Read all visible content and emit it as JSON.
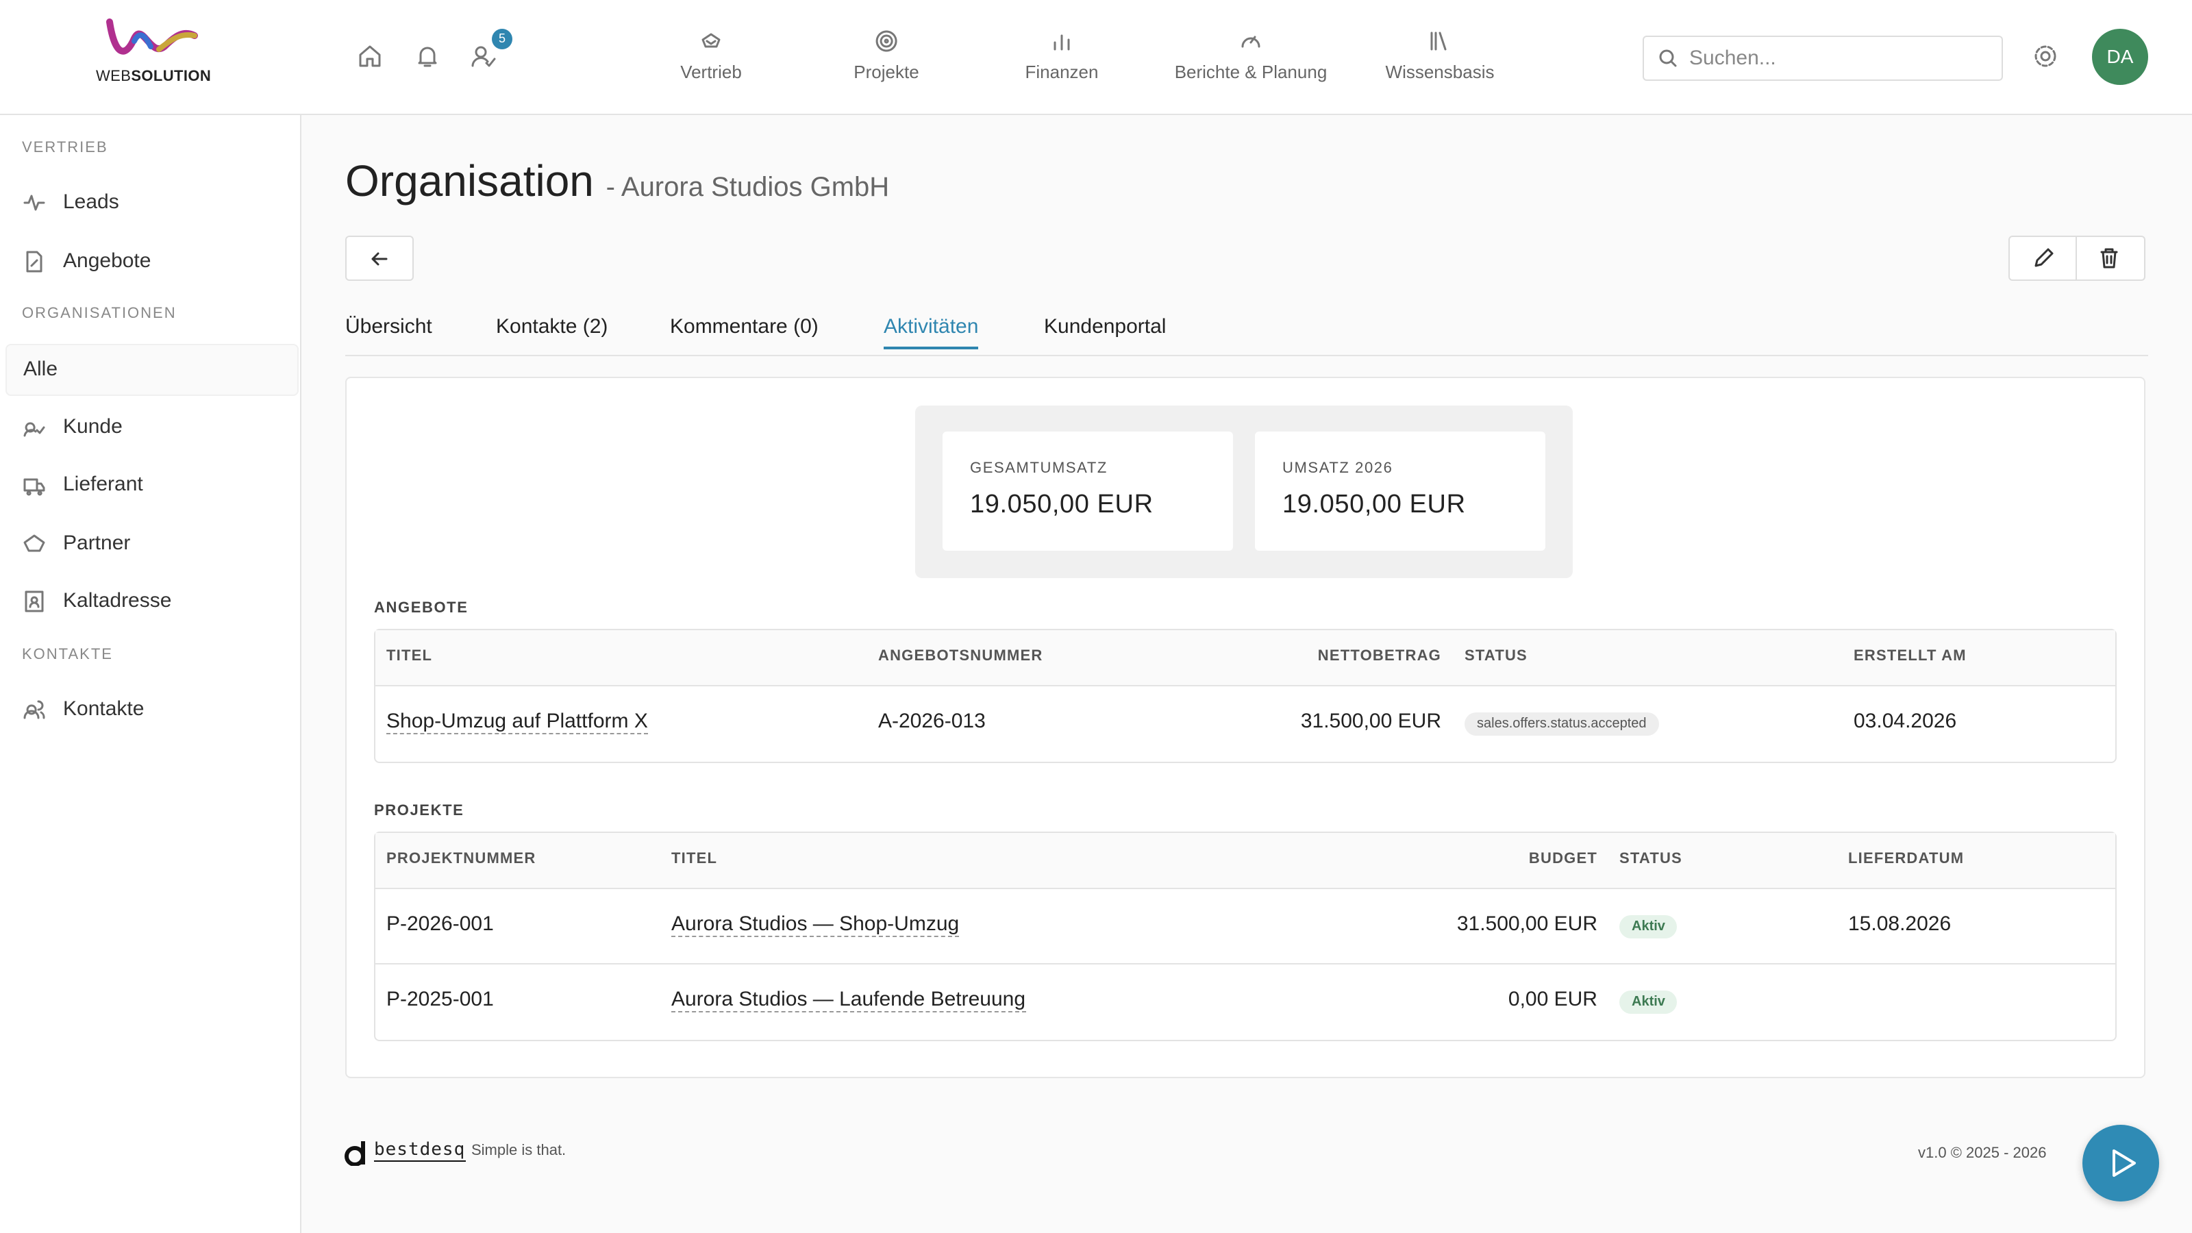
{
  "header": {
    "logo": {
      "brand_light": "WEB",
      "brand_bold": "SOLUTION"
    },
    "notification_badge": "5",
    "nav": [
      {
        "label": "Vertrieb"
      },
      {
        "label": "Projekte"
      },
      {
        "label": "Finanzen"
      },
      {
        "label": "Berichte & Planung"
      },
      {
        "label": "Wissensbasis"
      }
    ],
    "search_placeholder": "Suchen...",
    "avatar": "DA"
  },
  "sidebar": {
    "sections": [
      {
        "title": "VERTRIEB",
        "items": [
          {
            "label": "Leads"
          },
          {
            "label": "Angebote"
          }
        ]
      },
      {
        "title": "ORGANISATIONEN",
        "items": [
          {
            "label": "Alle",
            "active": true
          },
          {
            "label": "Kunde"
          },
          {
            "label": "Lieferant"
          },
          {
            "label": "Partner"
          },
          {
            "label": "Kaltadresse"
          }
        ]
      },
      {
        "title": "KONTAKTE",
        "items": [
          {
            "label": "Kontakte"
          }
        ]
      }
    ]
  },
  "page": {
    "title": "Organisation",
    "subtitle": "- Aurora Studios GmbH"
  },
  "tabs": [
    {
      "label": "Übersicht"
    },
    {
      "label": "Kontakte (2)"
    },
    {
      "label": "Kommentare (0)"
    },
    {
      "label": "Aktivitäten",
      "active": true
    },
    {
      "label": "Kundenportal"
    }
  ],
  "summary": [
    {
      "label": "GESAMTUMSATZ",
      "value": "19.050,00 EUR"
    },
    {
      "label": "UMSATZ 2026",
      "value": "19.050,00 EUR"
    }
  ],
  "offers": {
    "title": "ANGEBOTE",
    "columns": [
      "TITEL",
      "ANGEBOTSNUMMER",
      "NETTOBETRAG",
      "STATUS",
      "ERSTELLT AM"
    ],
    "rows": [
      [
        "Shop-Umzug auf Plattform X",
        "A-2026-013",
        "31.500,00 EUR",
        "sales.offers.status.accepted",
        "03.04.2026"
      ]
    ]
  },
  "projects": {
    "title": "PROJEKTE",
    "columns": [
      "PROJEKTNUMMER",
      "TITEL",
      "BUDGET",
      "STATUS",
      "LIEFERDATUM"
    ],
    "rows": [
      [
        "P-2026-001",
        "Aurora Studios — Shop-Umzug",
        "31.500,00 EUR",
        "Aktiv",
        "15.08.2026"
      ],
      [
        "P-2025-001",
        "Aurora Studios — Laufende Betreuung",
        "0,00 EUR",
        "Aktiv",
        null
      ]
    ]
  },
  "footer": {
    "brand": "bestdesq",
    "tagline": "Simple is that.",
    "version": "v1.0 © 2025 - 2026"
  }
}
